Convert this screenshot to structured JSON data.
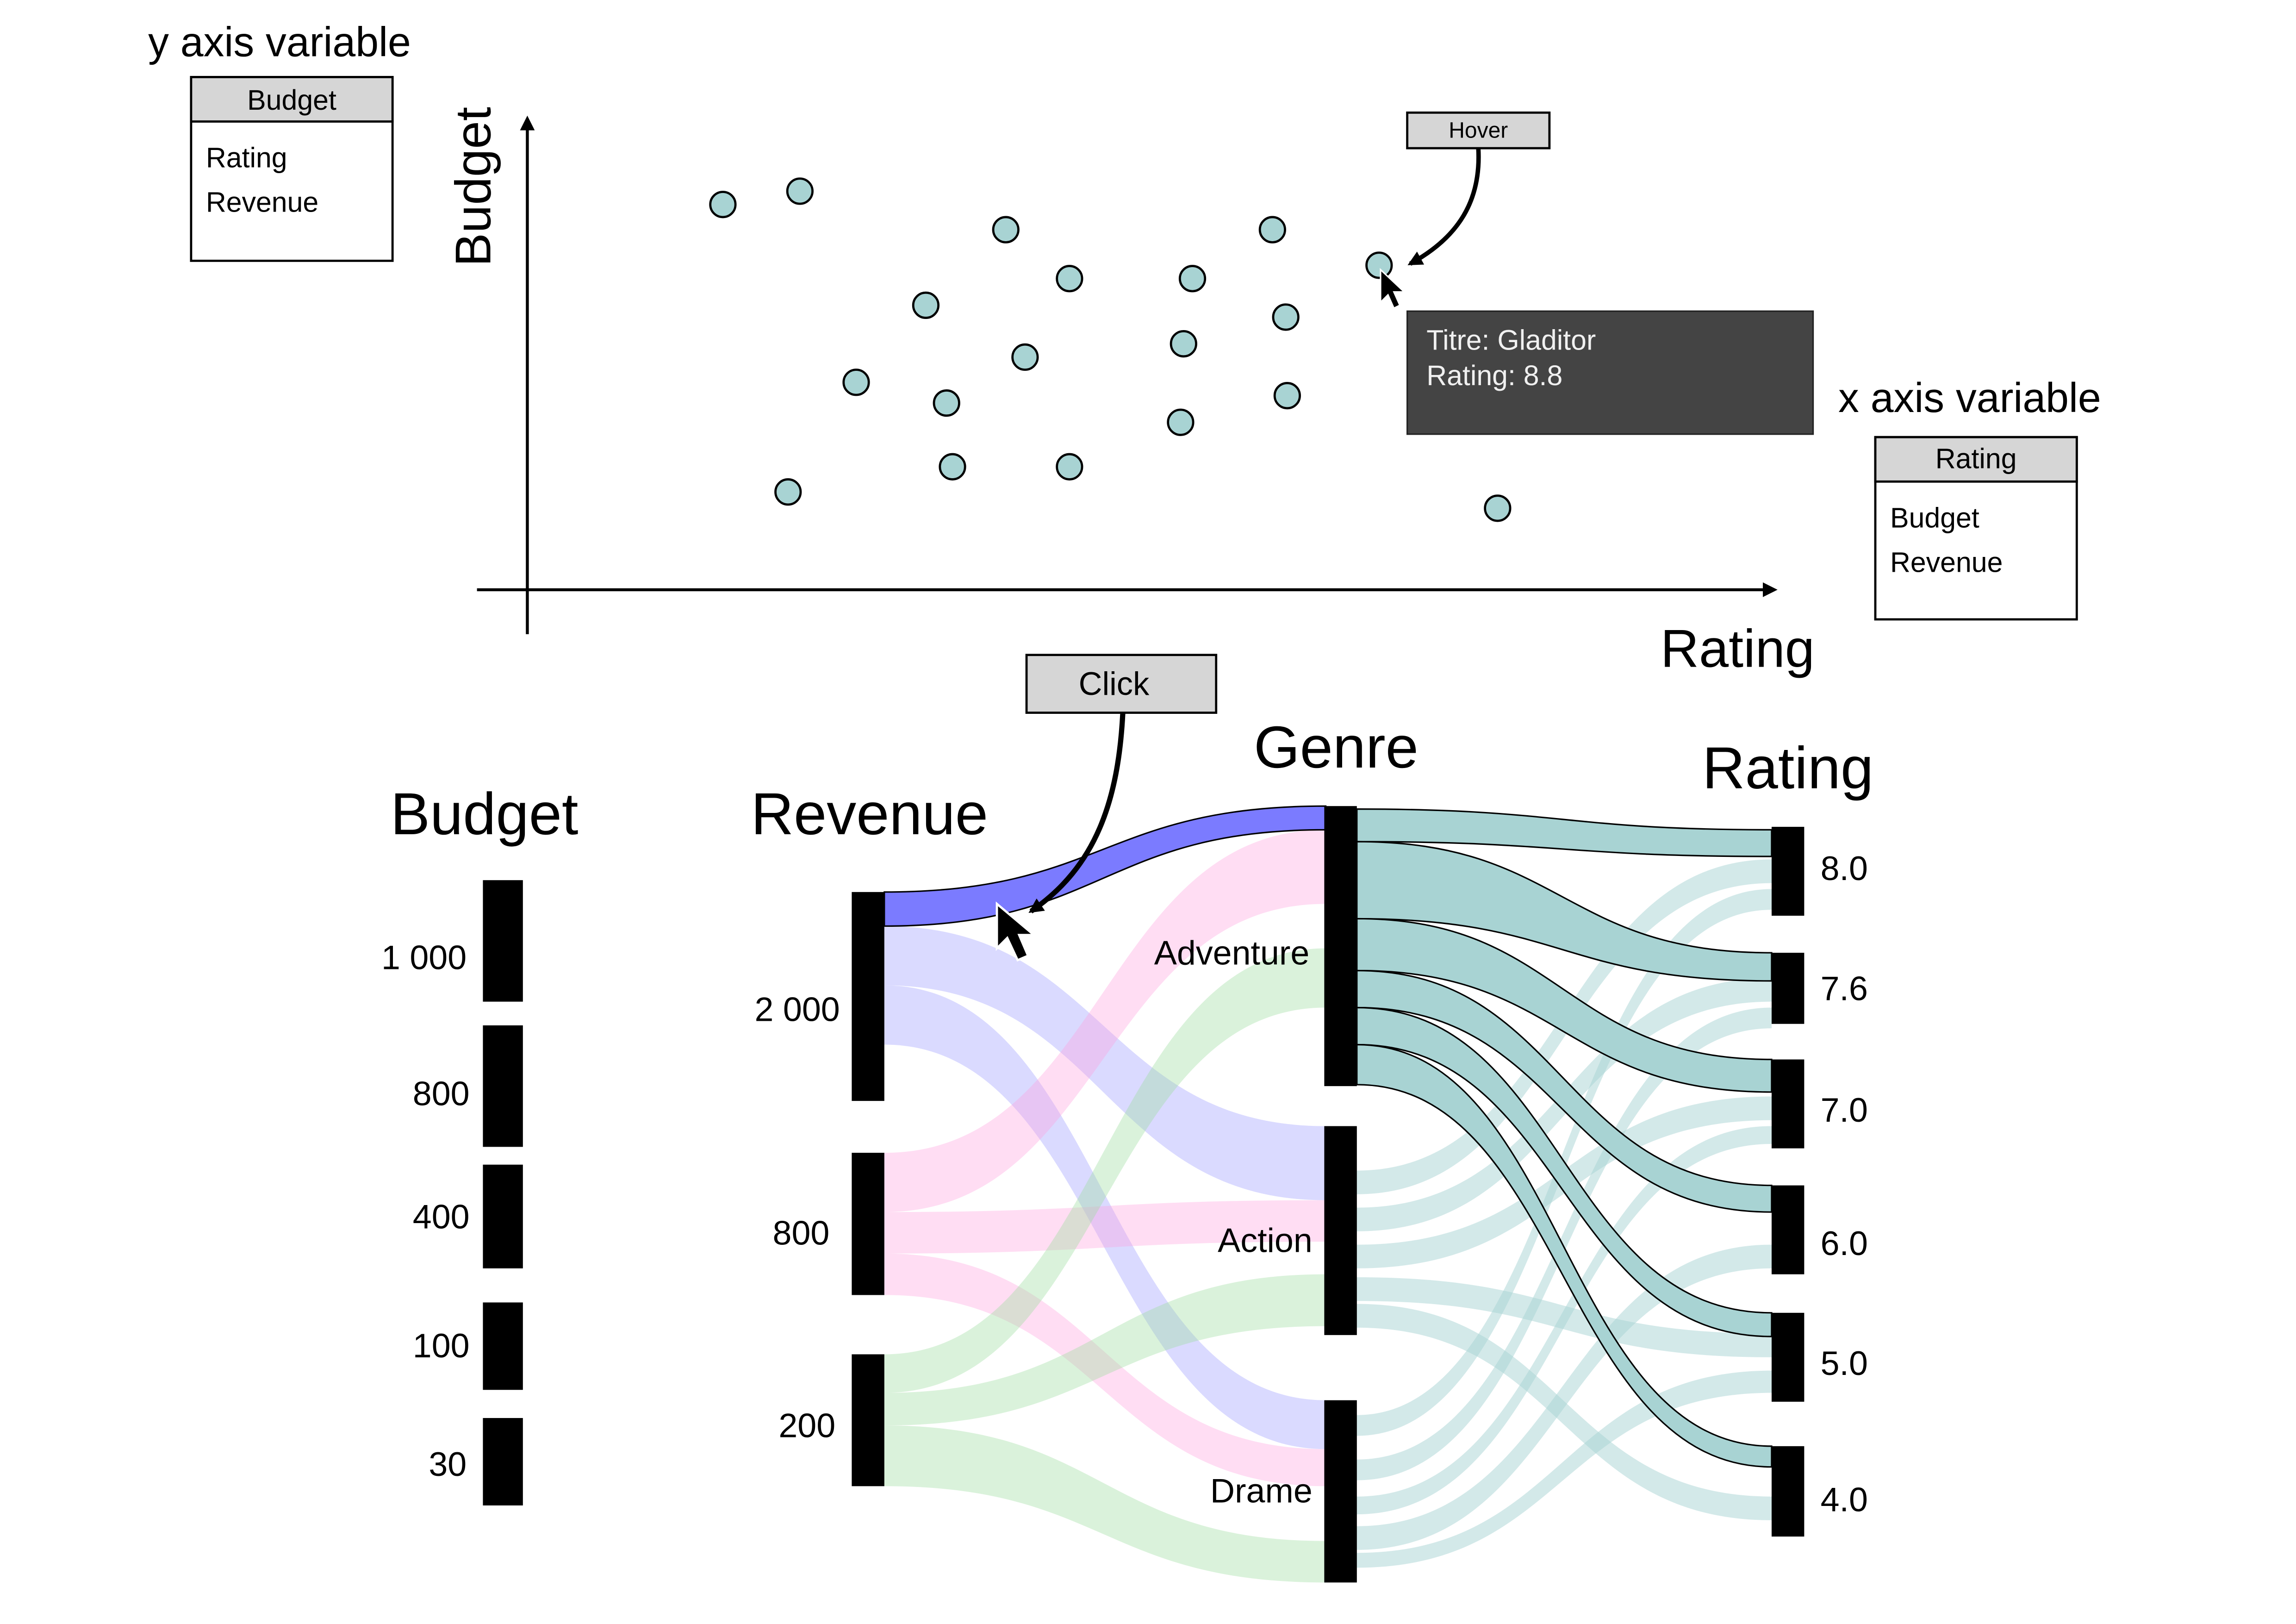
{
  "scatter": {
    "y_axis_selector": {
      "title": "y axis variable",
      "selected": "Budget",
      "options": [
        "Rating",
        "Revenue"
      ]
    },
    "x_axis_selector": {
      "title": "x axis variable",
      "selected": "Rating",
      "options": [
        "Budget",
        "Revenue"
      ]
    },
    "y_axis_label": "Budget",
    "x_axis_label": "Rating",
    "hover_callout": "Hover",
    "tooltip": {
      "line1": "Titre: Gladitor",
      "line2": "Rating: 8.8"
    },
    "point_color": "#a8d3d3",
    "tooltip_color": "#444444"
  },
  "parallel_sets": {
    "click_callout": "Click",
    "axes": {
      "budget": {
        "title": "Budget",
        "categories": [
          "1 000",
          "800",
          "400",
          "100",
          "30"
        ]
      },
      "revenue": {
        "title": "Revenue",
        "categories": [
          "2 000",
          "800",
          "200"
        ]
      },
      "genre": {
        "title": "Genre",
        "categories": [
          "Adventure",
          "Action",
          "Drame"
        ]
      },
      "rating": {
        "title": "Rating",
        "categories": [
          "8.0",
          "7.6",
          "7.0",
          "6.0",
          "5.0",
          "4.0"
        ]
      }
    },
    "colors": {
      "adventure_flow": "#ff9fdc",
      "action_flow": "#7b7bff",
      "drame_flow": "#9fdca0",
      "rating_flow": "#a8d3d3",
      "selected_flow": "#7b7bff"
    }
  }
}
